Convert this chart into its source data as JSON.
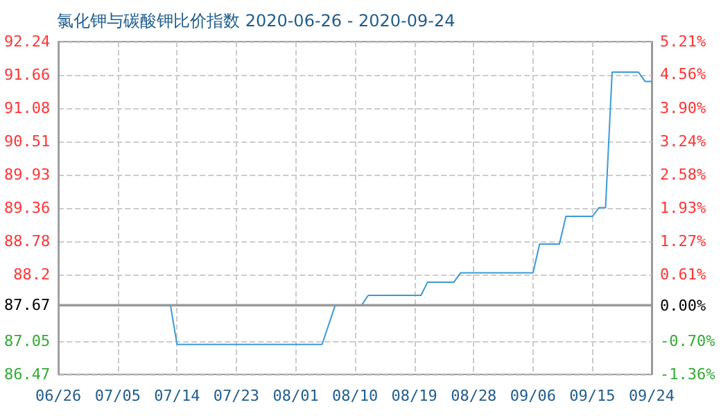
{
  "chart_data": {
    "type": "line",
    "title": "氯化钾与碳酸钾比价指数 2020-06-26 - 2020-09-24",
    "x": [
      "2020-06-26",
      "2020-07-13",
      "2020-07-14",
      "2020-08-05",
      "2020-08-07",
      "2020-08-11",
      "2020-08-12",
      "2020-08-20",
      "2020-08-21",
      "2020-08-25",
      "2020-08-26",
      "2020-09-06",
      "2020-09-07",
      "2020-09-10",
      "2020-09-11",
      "2020-09-15",
      "2020-09-16",
      "2020-09-17",
      "2020-09-18",
      "2020-09-22",
      "2020-09-23",
      "2020-09-24"
    ],
    "series": [
      {
        "color": "#3a9ad9",
        "values": [
          87.67,
          87.67,
          86.99,
          86.99,
          87.67,
          87.67,
          87.84,
          87.84,
          88.07,
          88.07,
          88.23,
          88.23,
          88.73,
          88.73,
          89.21,
          89.21,
          89.36,
          89.36,
          91.71,
          91.71,
          91.55,
          91.55
        ]
      }
    ],
    "xlim": [
      "2020-06-26",
      "2020-09-24"
    ],
    "xticks": [
      {
        "value": "2020-06-26",
        "label": "06/26"
      },
      {
        "value": "2020-07-05",
        "label": "07/05"
      },
      {
        "value": "2020-07-14",
        "label": "07/14"
      },
      {
        "value": "2020-07-23",
        "label": "07/23"
      },
      {
        "value": "2020-08-01",
        "label": "08/01"
      },
      {
        "value": "2020-08-10",
        "label": "08/10"
      },
      {
        "value": "2020-08-19",
        "label": "08/19"
      },
      {
        "value": "2020-08-28",
        "label": "08/28"
      },
      {
        "value": "2020-09-06",
        "label": "09/06"
      },
      {
        "value": "2020-09-15",
        "label": "09/15"
      },
      {
        "value": "2020-09-24",
        "label": "09/24"
      }
    ],
    "ylim": [
      86.47,
      92.24
    ],
    "yticks": [
      86.47,
      87.05,
      87.67,
      88.2,
      88.78,
      89.36,
      89.93,
      90.51,
      91.08,
      91.66,
      92.24
    ],
    "y2lim": [
      -1.36,
      5.21
    ],
    "y2ticks": [
      {
        "value": -1.36,
        "label": "-1.36%"
      },
      {
        "value": -0.7,
        "label": "-0.70%"
      },
      {
        "value": 0,
        "label": "0.00%"
      },
      {
        "value": 0.61,
        "label": "0.61%"
      },
      {
        "value": 1.27,
        "label": "1.27%"
      },
      {
        "value": 1.93,
        "label": "1.93%"
      },
      {
        "value": 2.58,
        "label": "2.58%"
      },
      {
        "value": 3.24,
        "label": "3.24%"
      },
      {
        "value": 3.9,
        "label": "3.90%"
      },
      {
        "value": 4.56,
        "label": "4.56%"
      },
      {
        "value": 5.21,
        "label": "5.21%"
      }
    ],
    "ref_lines": [
      {
        "axis": "y",
        "value": 87.67,
        "color": "#999999"
      }
    ],
    "grid": true,
    "marker": "none",
    "line_style": "solid"
  }
}
